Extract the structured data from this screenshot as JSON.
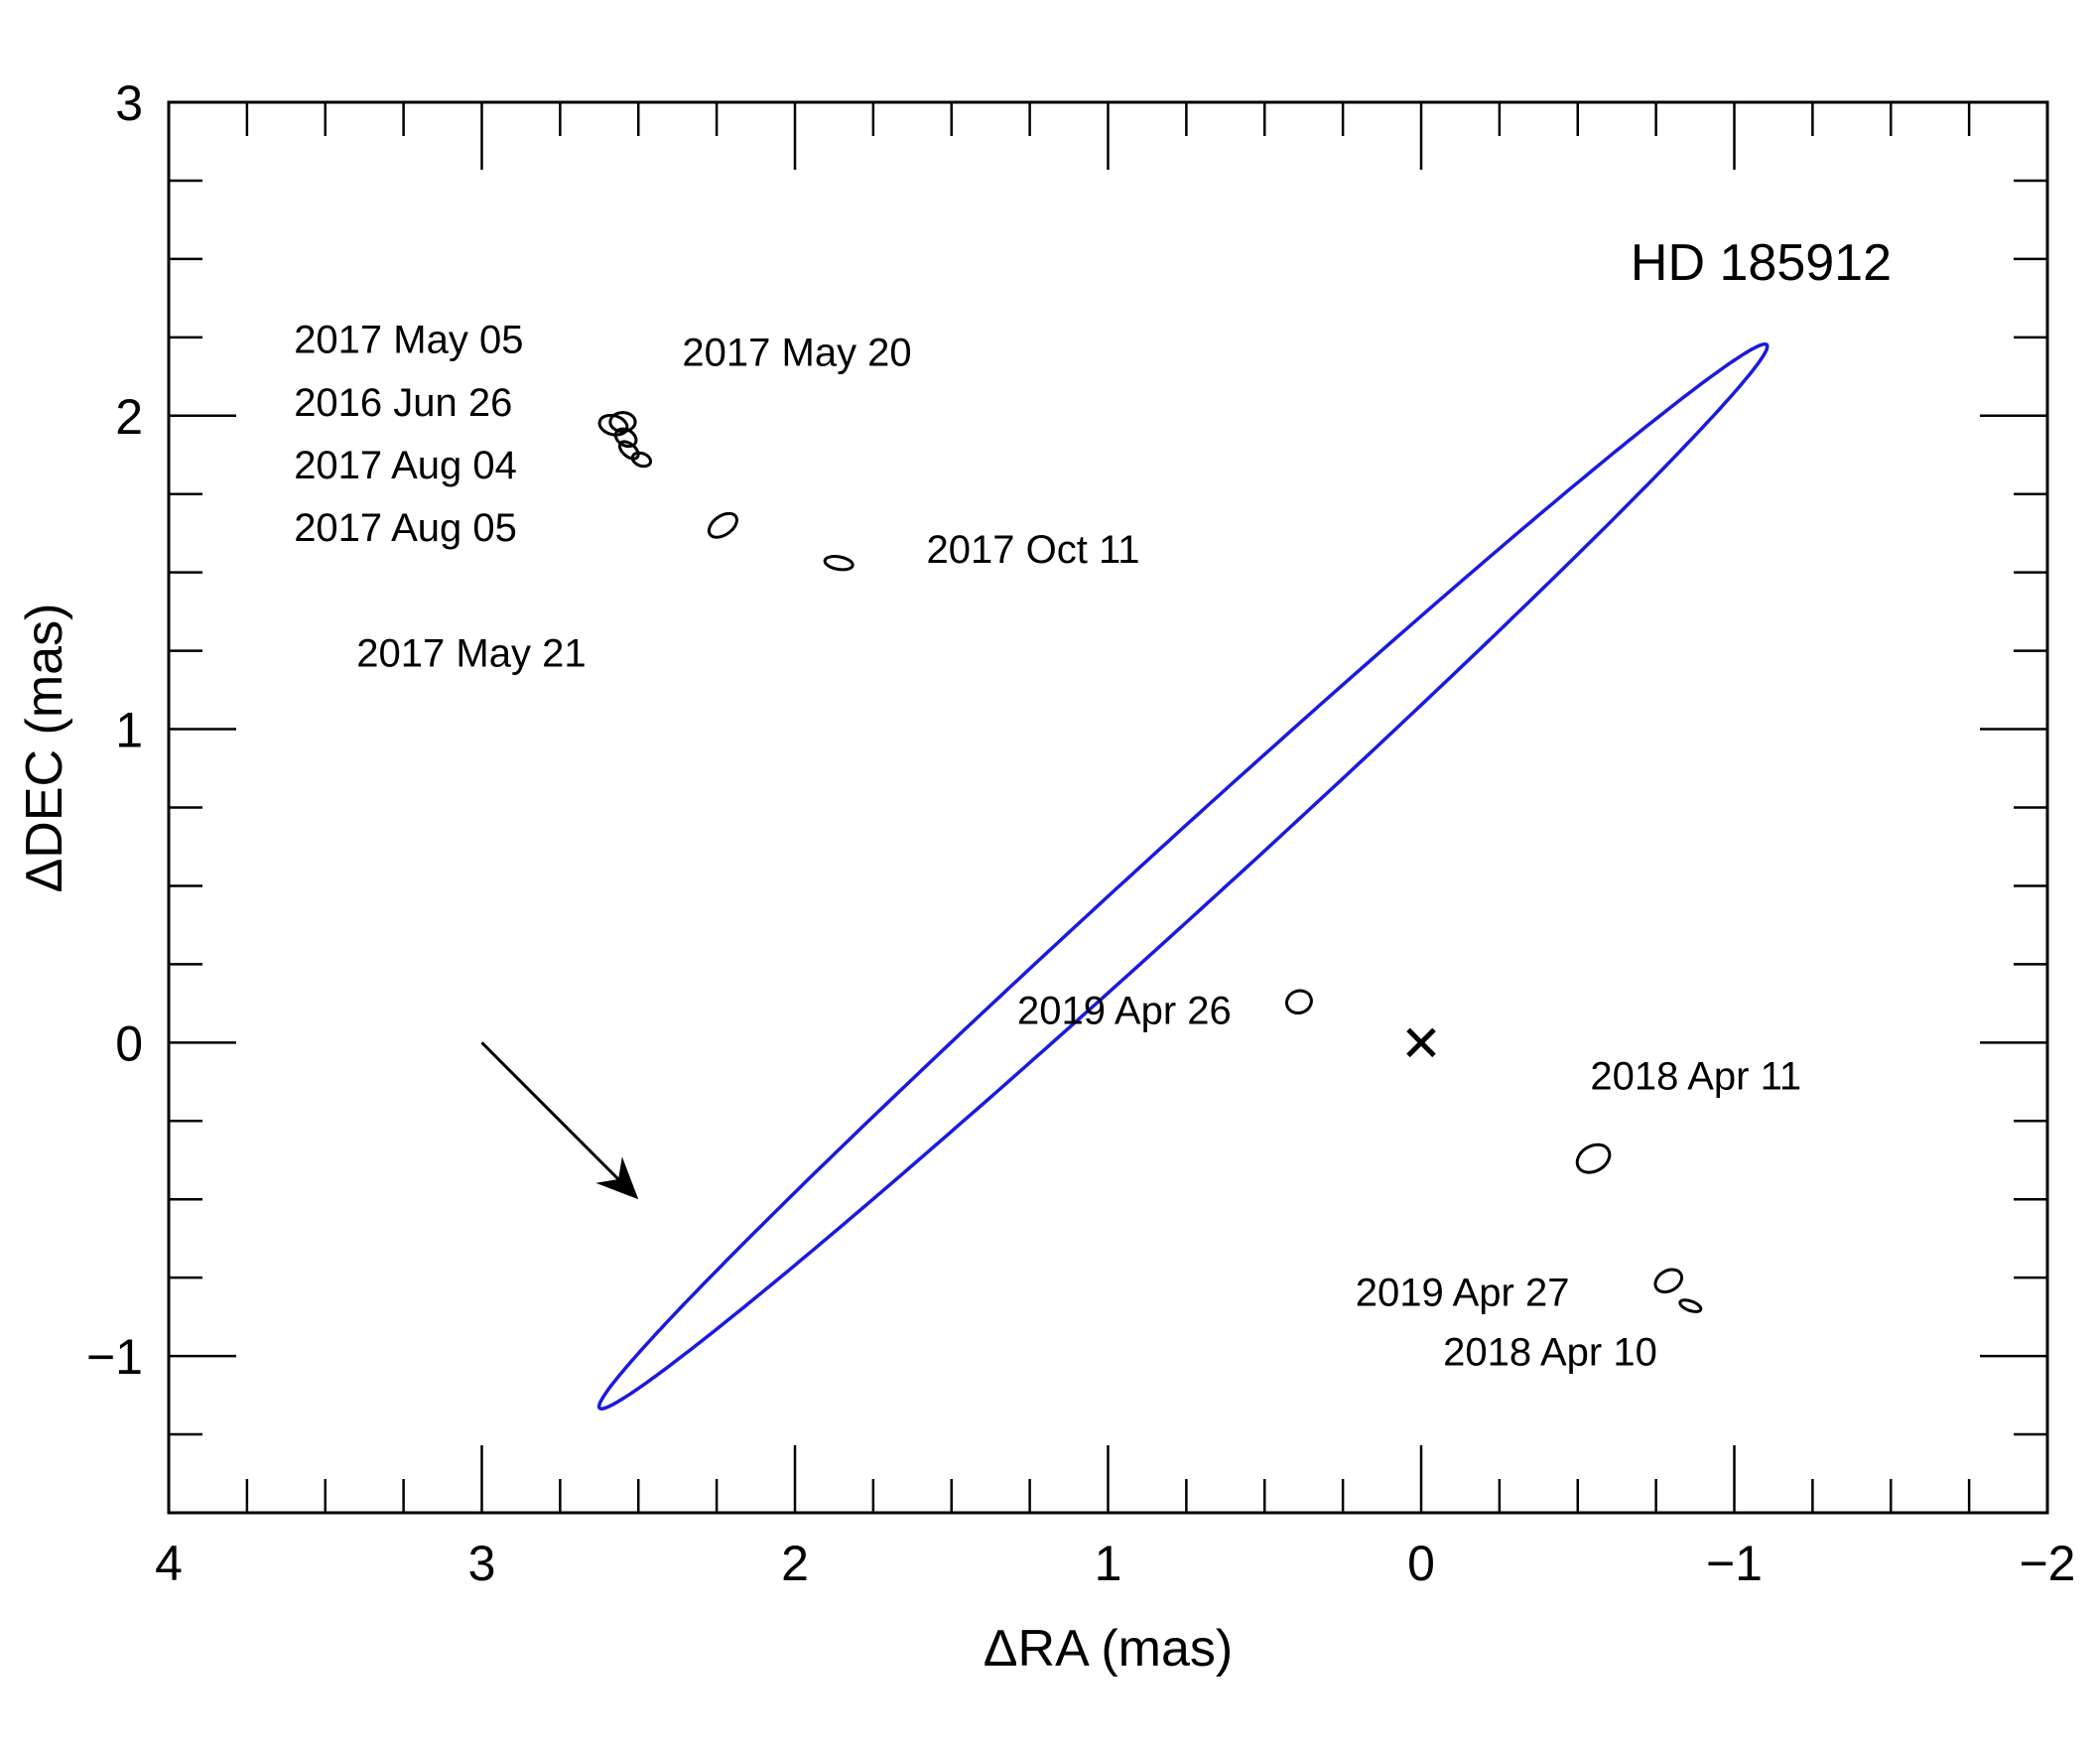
{
  "chart_data": {
    "type": "scatter",
    "title": "HD 185912",
    "xlabel": "ΔRA (mas)",
    "ylabel": "ΔDEC (mas)",
    "xlim": [
      4,
      -2
    ],
    "ylim": [
      -1.5,
      3
    ],
    "x_ticks": [
      {
        "value": 4,
        "label": "4"
      },
      {
        "value": 3,
        "label": "3"
      },
      {
        "value": 2,
        "label": "2"
      },
      {
        "value": 1,
        "label": "1"
      },
      {
        "value": 0,
        "label": "0"
      },
      {
        "value": -1,
        "label": "−1"
      },
      {
        "value": -2,
        "label": "−2"
      }
    ],
    "y_ticks": [
      {
        "value": -1,
        "label": "−1"
      },
      {
        "value": 0,
        "label": "0"
      },
      {
        "value": 1,
        "label": "1"
      },
      {
        "value": 2,
        "label": "2"
      },
      {
        "value": 3,
        "label": "3"
      }
    ],
    "minor_step": 0.25,
    "orbit": {
      "center": [
        0.76,
        0.53
      ],
      "semi_axes": [
        2.52,
        0.115
      ],
      "position_angle_deg": -42.3,
      "color": "#1a1adf"
    },
    "primary_star": {
      "x": 0,
      "y": 0,
      "marker": "x"
    },
    "direction_arrow": {
      "from": [
        3.0,
        0.0
      ],
      "to": [
        2.5,
        -0.5
      ]
    },
    "epochs": [
      {
        "x": 2.58,
        "y": 1.97,
        "a": 0.045,
        "b": 0.03,
        "pa": -15
      },
      {
        "x": 2.55,
        "y": 1.98,
        "a": 0.04,
        "b": 0.03,
        "pa": 0
      },
      {
        "x": 2.54,
        "y": 1.93,
        "a": 0.035,
        "b": 0.025,
        "pa": -30
      },
      {
        "x": 2.53,
        "y": 1.89,
        "a": 0.035,
        "b": 0.02,
        "pa": -40
      },
      {
        "x": 2.49,
        "y": 1.86,
        "a": 0.03,
        "b": 0.02,
        "pa": -20
      },
      {
        "x": 2.23,
        "y": 1.65,
        "a": 0.05,
        "b": 0.03,
        "pa": 35
      },
      {
        "x": 1.86,
        "y": 1.53,
        "a": 0.045,
        "b": 0.02,
        "pa": -10
      },
      {
        "x": 0.39,
        "y": 0.13,
        "a": 0.04,
        "b": 0.035,
        "pa": 20
      },
      {
        "x": -0.55,
        "y": -0.37,
        "a": 0.055,
        "b": 0.04,
        "pa": 30
      },
      {
        "x": -0.79,
        "y": -0.76,
        "a": 0.045,
        "b": 0.032,
        "pa": 30
      },
      {
        "x": -0.86,
        "y": -0.84,
        "a": 0.035,
        "b": 0.015,
        "pa": -20
      }
    ],
    "labels": [
      {
        "text": "2017 May 05",
        "x": 3.6,
        "y": 2.2
      },
      {
        "text": "2016 Jun 26",
        "x": 3.6,
        "y": 2.0
      },
      {
        "text": "2017 Aug 04",
        "x": 3.6,
        "y": 1.8
      },
      {
        "text": "2017 Aug 05",
        "x": 3.6,
        "y": 1.6
      },
      {
        "text": "2017 May 21",
        "x": 3.4,
        "y": 1.2
      },
      {
        "text": "2017 May 20",
        "x": 2.36,
        "y": 2.16
      },
      {
        "text": "2017 Oct 11",
        "x": 1.58,
        "y": 1.53
      },
      {
        "text": "2019 Apr 26",
        "x": 1.29,
        "y": 0.06
      },
      {
        "text": "2018 Apr 11",
        "x": -0.54,
        "y": -0.15
      },
      {
        "text": "2019 Apr 27",
        "x": 0.21,
        "y": -0.84
      },
      {
        "text": "2018 Apr 10",
        "x": -0.07,
        "y": -1.03
      }
    ]
  }
}
